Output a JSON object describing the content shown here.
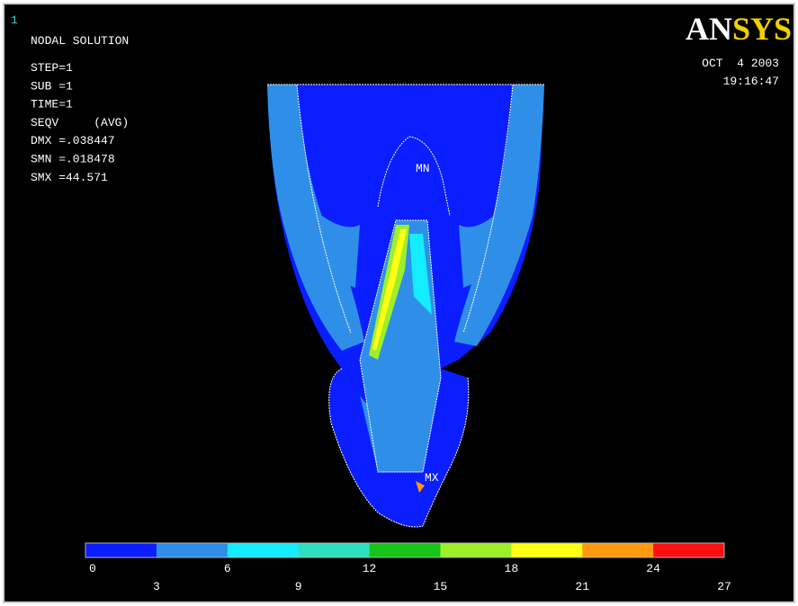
{
  "window_number": "1",
  "title": "NODAL SOLUTION",
  "info": [
    "STEP=1",
    "SUB =1",
    "TIME=1",
    "SEQV     (AVG)",
    "DMX =.038447",
    "SMN =.018478",
    "SMX =44.571"
  ],
  "logo": [
    "AN",
    "SYS"
  ],
  "date": "OCT  4 2003",
  "time": "19:16:47",
  "markers": {
    "min": "MN",
    "max": "MX"
  },
  "legend": {
    "ticks": [
      0,
      3,
      6,
      9,
      12,
      15,
      18,
      21,
      24,
      27
    ],
    "colors": [
      "#0a1eff",
      "#2f8fe8",
      "#14ecff",
      "#2ee0c0",
      "#16c41a",
      "#9eef2a",
      "#ffff14",
      "#ff9a10",
      "#ff1010"
    ]
  }
}
